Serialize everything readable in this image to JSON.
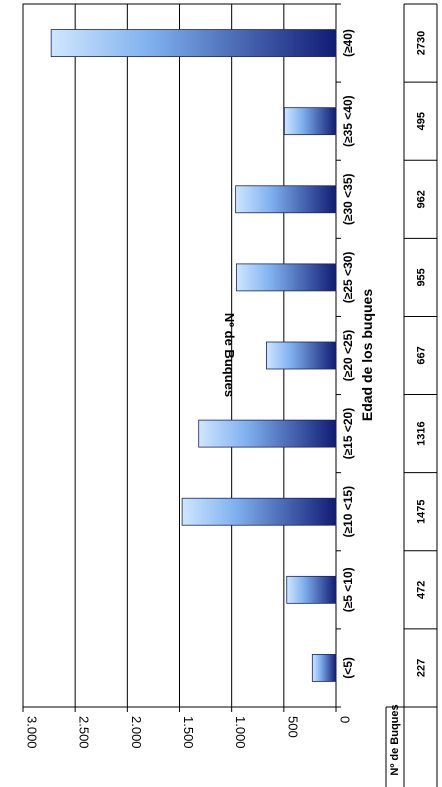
{
  "chart_data": {
    "type": "bar",
    "orientation": "horizontal",
    "categories": [
      "(<5)",
      "(≥5 <10)",
      "(≥10 <15)",
      "(≥15 <20)",
      "(≥20 <25)",
      "(≥25 <30)",
      "(≥30 <35)",
      "(≥35 <40)",
      "(≥40)"
    ],
    "values": [
      227,
      472,
      1475,
      1316,
      667,
      955,
      962,
      495,
      2730
    ],
    "table_values": [
      "227",
      "472",
      "1475",
      "1316",
      "667",
      "955",
      "962",
      "495",
      "2730"
    ],
    "tick_labels": [
      "0",
      "500",
      "1.000",
      "1.500",
      "2.000",
      "2.500",
      "3.000"
    ],
    "ticks": [
      0,
      500,
      1000,
      1500,
      2000,
      2500,
      3000
    ],
    "xlabel": "Edad de los buques",
    "ylabel": "Nº de Buques",
    "table_label": "Nº de Buques",
    "ylim": [
      0,
      3000
    ],
    "grid": true,
    "colors": {
      "bar_light": "#cfe6ff",
      "bar_mid": "#7fb0ee",
      "bar_dark": "#101c74",
      "grid": "#000000"
    }
  }
}
